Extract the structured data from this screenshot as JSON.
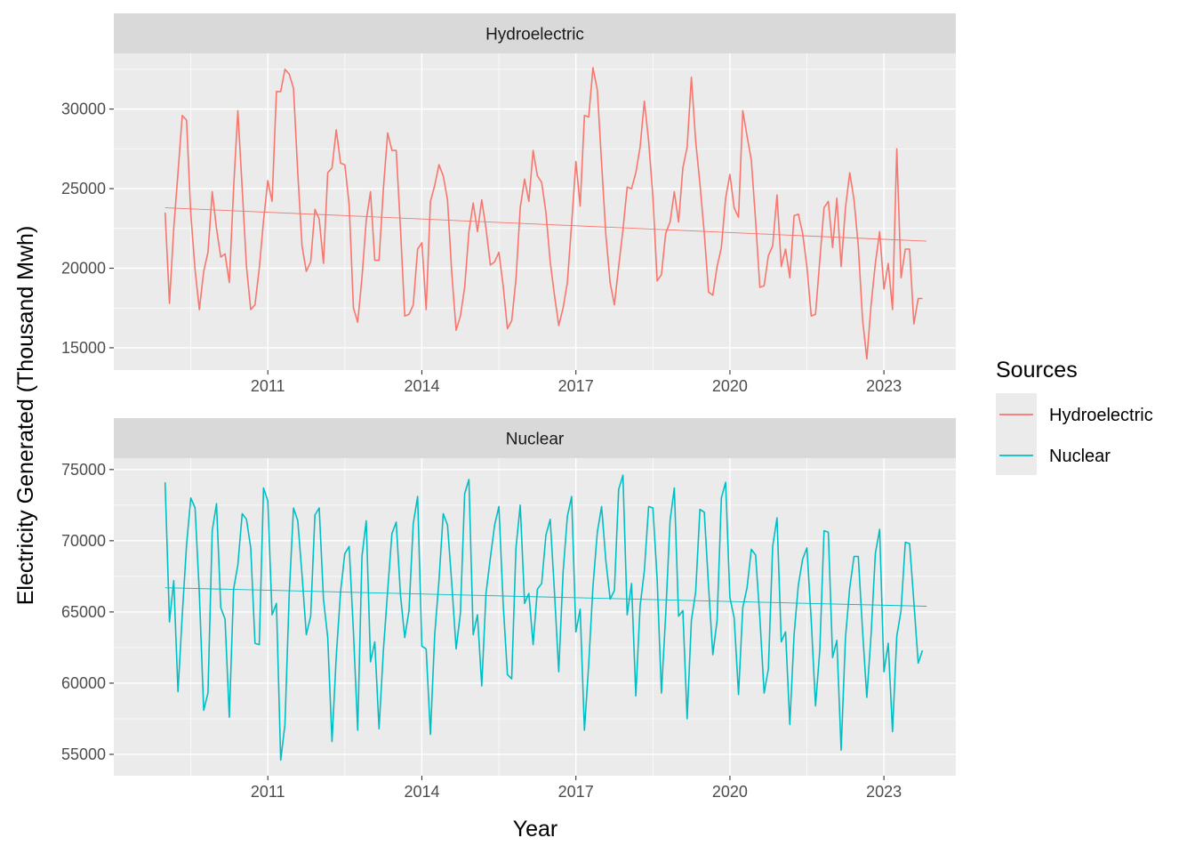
{
  "chart_data": {
    "type": "line",
    "ylabel": "Electricity Generated (Thousand Mwh)",
    "xlabel": "Year",
    "x_ticks": [
      2011,
      2014,
      2017,
      2020,
      2023
    ],
    "x_range": [
      2008.0,
      2024.4
    ],
    "legend": {
      "title": "Sources",
      "position": "right"
    },
    "grid": true,
    "panels": [
      {
        "label": "Hydroelectric",
        "color": "#F8766D",
        "ylim": [
          13600,
          33500
        ],
        "y_ticks": [
          15000,
          20000,
          25000,
          30000
        ],
        "trend": {
          "start_year": 2009.0,
          "start": 23800,
          "end_year": 2023.83,
          "end": 21700
        },
        "start_year": 2009.0,
        "values": [
          23500,
          17800,
          22500,
          26000,
          29600,
          29300,
          23400,
          19900,
          17400,
          19800,
          21000,
          24800,
          22500,
          20700,
          20900,
          19100,
          25000,
          29900,
          25000,
          20100,
          17400,
          17700,
          20000,
          23000,
          25500,
          24200,
          31100,
          31100,
          32500,
          32200,
          31300,
          26000,
          21400,
          19800,
          20400,
          23700,
          23100,
          20300,
          26000,
          26300,
          28700,
          26600,
          26500,
          24000,
          17500,
          16600,
          19400,
          23000,
          24800,
          20500,
          20500,
          25000,
          28500,
          27400,
          27400,
          22500,
          17000,
          17100,
          17700,
          21200,
          21600,
          17400,
          24200,
          25200,
          26500,
          25800,
          24300,
          19700,
          16100,
          17000,
          18800,
          22300,
          24100,
          22300,
          24300,
          22500,
          20200,
          20400,
          21000,
          18900,
          16200,
          16700,
          19300,
          23800,
          25600,
          24200,
          27400,
          25800,
          25400,
          23500,
          20400,
          18300,
          16400,
          17500,
          19100,
          22800,
          26700,
          23900,
          29600,
          29500,
          32600,
          31200,
          26600,
          22100,
          19100,
          17700,
          20100,
          22400,
          25100,
          25000,
          26000,
          27600,
          30500,
          28000,
          24500,
          19200,
          19600,
          22200,
          22900,
          24800,
          22900,
          26300,
          27600,
          32000,
          28000,
          25300,
          22200,
          18500,
          18300,
          20100,
          21300,
          24400,
          25900,
          23800,
          23200,
          29900,
          28300,
          26800,
          23000,
          18800,
          18900,
          20800,
          21400,
          24600,
          20100,
          21200,
          19400,
          23300,
          23400,
          22200,
          20100,
          17000,
          17100,
          20500,
          23800,
          24200,
          21300,
          24400,
          20100,
          23800,
          26000,
          24300,
          21400,
          16800,
          14300,
          17700,
          20300,
          22300,
          18700,
          20300,
          17400,
          27500,
          19400,
          21200,
          21200,
          16500,
          18100,
          18100
        ]
      },
      {
        "label": "Nuclear",
        "color": "#00BFC4",
        "ylim": [
          53500,
          75800
        ],
        "y_ticks": [
          55000,
          60000,
          65000,
          70000,
          75000
        ],
        "trend": {
          "start_year": 2009.0,
          "start": 66700,
          "end_year": 2023.83,
          "end": 65400
        },
        "start_year": 2009.0,
        "values": [
          74100,
          64300,
          67200,
          59400,
          64800,
          69700,
          73000,
          72300,
          66300,
          58100,
          59300,
          70700,
          72600,
          65300,
          64500,
          57600,
          66600,
          68300,
          71900,
          71500,
          69500,
          62800,
          62700,
          73700,
          72800,
          64800,
          65600,
          54600,
          57100,
          66300,
          72300,
          71400,
          67600,
          63400,
          64700,
          71800,
          72300,
          65900,
          63200,
          55900,
          61900,
          66400,
          69100,
          69600,
          63600,
          56700,
          68900,
          71400,
          61500,
          62900,
          56800,
          62300,
          66500,
          70500,
          71300,
          66200,
          63200,
          65100,
          71200,
          73100,
          62600,
          62400,
          56400,
          63400,
          67200,
          71900,
          71100,
          67000,
          62400,
          64900,
          73300,
          74300,
          63400,
          64800,
          59800,
          66300,
          68800,
          71100,
          72400,
          65600,
          60600,
          60300,
          69500,
          72500,
          65600,
          66300,
          62700,
          66600,
          67000,
          70400,
          71500,
          66400,
          60800,
          67800,
          71700,
          73100,
          63600,
          65200,
          56700,
          61300,
          66800,
          70600,
          72400,
          68600,
          65900,
          66500,
          73600,
          74600,
          64800,
          67000,
          59100,
          65400,
          67900,
          72400,
          72300,
          67300,
          59300,
          64800,
          71400,
          73700,
          64700,
          65100,
          57500,
          64400,
          66400,
          72200,
          72000,
          66800,
          62000,
          64400,
          73000,
          74100,
          66000,
          64600,
          59200,
          65300,
          66700,
          69400,
          69000,
          64600,
          59300,
          61000,
          69600,
          71600,
          62900,
          63600,
          57100,
          63400,
          66900,
          68700,
          69500,
          64400,
          58400,
          62300,
          70700,
          70600,
          61800,
          63000,
          55300,
          63200,
          66700,
          68900,
          68900,
          63700,
          59000,
          63400,
          69100,
          70800,
          60800,
          62800,
          56600,
          63300,
          65100,
          69900,
          69800,
          65700,
          61400,
          62300
        ]
      }
    ]
  }
}
